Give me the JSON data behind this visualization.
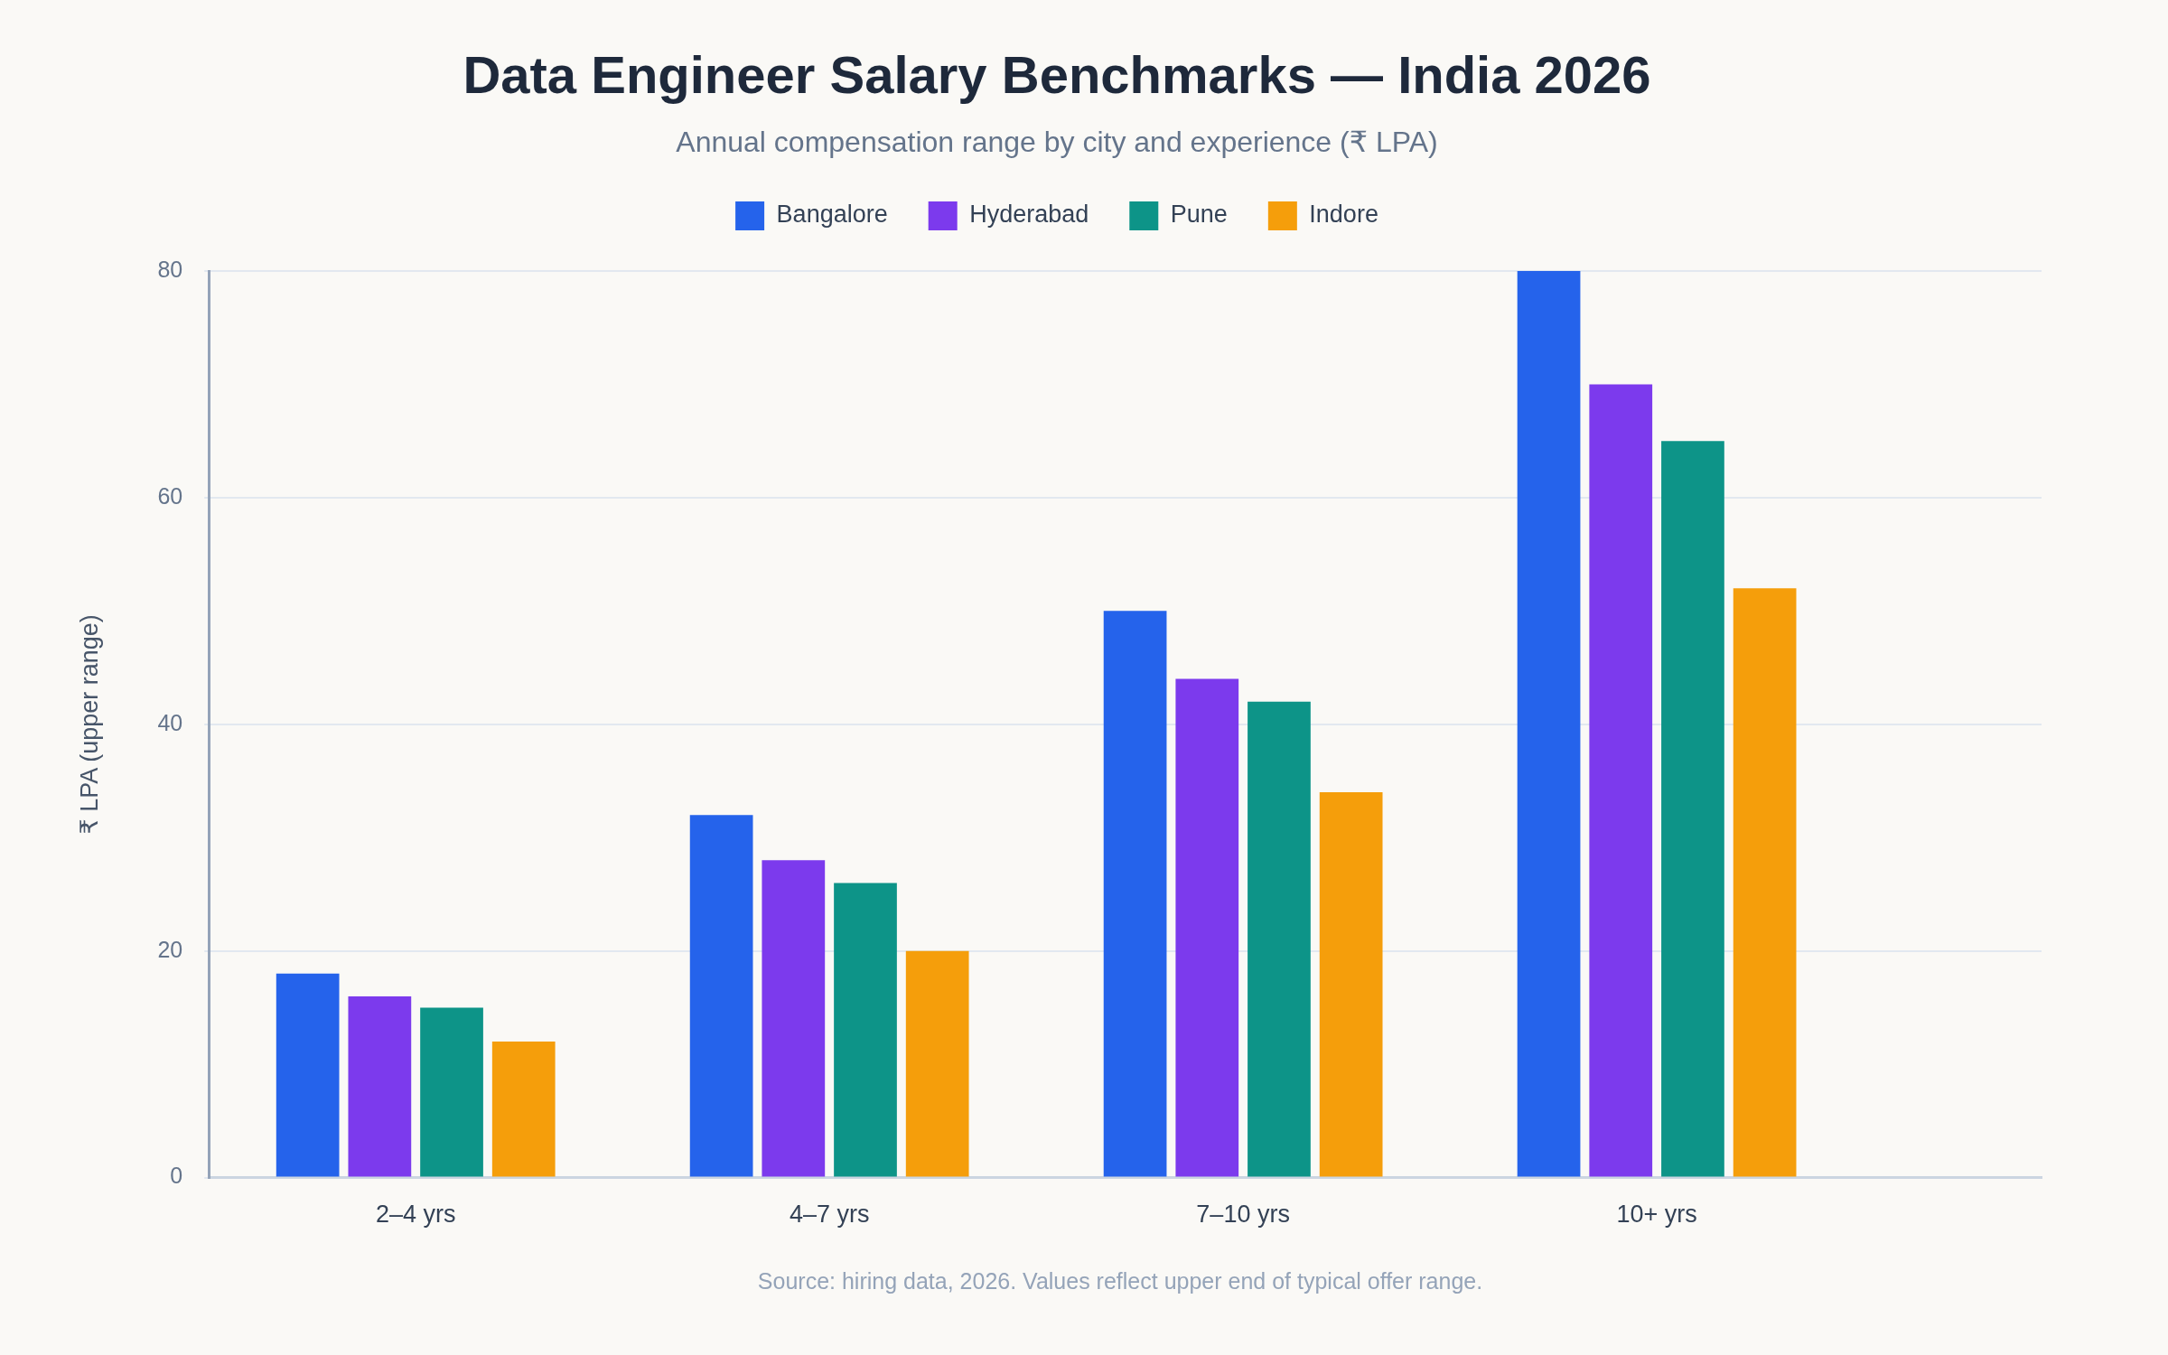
{
  "chart_data": {
    "type": "bar",
    "title": "Data Engineer Salary Benchmarks — India 2026",
    "subtitle": "Annual compensation range by city and experience (₹ LPA)",
    "ylabel": "₹ LPA (upper range)",
    "categories": [
      "2–4 yrs",
      "4–7 yrs",
      "7–10 yrs",
      "10+ yrs"
    ],
    "series": [
      {
        "name": "Bangalore",
        "color": "#2563eb",
        "values": [
          18,
          32,
          50,
          80
        ]
      },
      {
        "name": "Hyderabad",
        "color": "#7c3aed",
        "values": [
          16,
          28,
          44,
          70
        ]
      },
      {
        "name": "Pune",
        "color": "#0d9488",
        "values": [
          15,
          26,
          42,
          65
        ]
      },
      {
        "name": "Indore",
        "color": "#f59e0b",
        "values": [
          12,
          20,
          34,
          52
        ]
      }
    ],
    "ylim": [
      0,
      80
    ],
    "yticks": [
      0,
      20,
      40,
      60,
      80
    ],
    "grid": "y",
    "legend": "top",
    "annotations": [
      "Source: hiring data, 2026. Values reflect upper end of typical offer range."
    ]
  }
}
